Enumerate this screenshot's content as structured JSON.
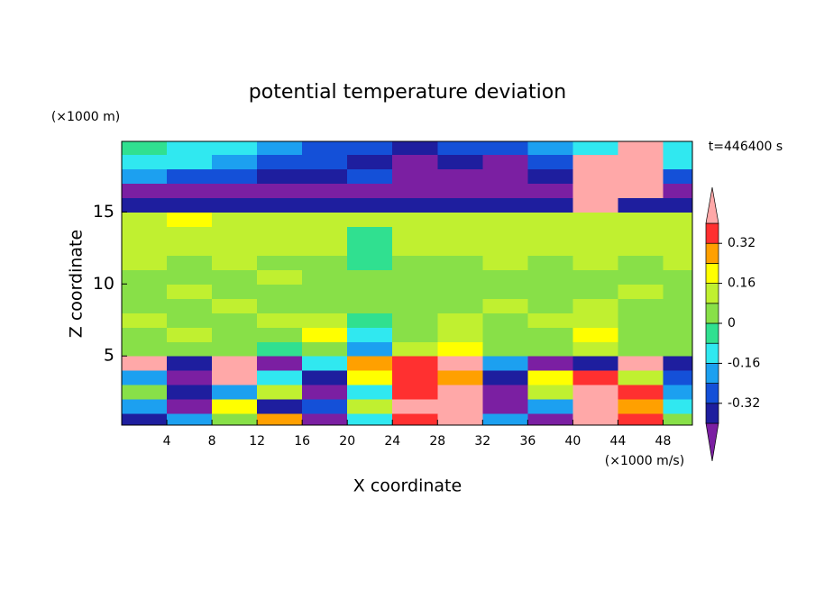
{
  "chart_data": {
    "type": "contour",
    "title": "potential temperature deviation",
    "x_label": "X coordinate",
    "y_label": "Z coordinate",
    "x_unit": "(×1000 m/s)",
    "y_unit": "(×1000 m)",
    "annotation": "t=446400 s",
    "xlim": [
      0,
      50.6
    ],
    "ylim": [
      0.2,
      19.9
    ],
    "xticks": [
      4,
      8,
      12,
      16,
      20,
      24,
      28,
      32,
      36,
      40,
      44,
      48
    ],
    "yticks": [
      5,
      10,
      15
    ],
    "x": [
      2,
      6,
      10,
      14,
      18,
      22,
      26,
      30,
      34,
      38,
      42,
      46,
      50
    ],
    "y": [
      0.5,
      1.5,
      2.5,
      3.5,
      4.5,
      5.5,
      6.5,
      7.5,
      8.5,
      9.5,
      10.5,
      11.5,
      12.5,
      13.5,
      14.5,
      15.5,
      16.5,
      17.5,
      18.5,
      19.5
    ],
    "z": [
      [
        -0.36,
        -0.2,
        0.04,
        0.28,
        -0.44,
        -0.12,
        0.36,
        0.44,
        -0.2,
        -0.44,
        0.44,
        0.36,
        0.04
      ],
      [
        -0.2,
        -0.44,
        0.2,
        -0.36,
        -0.28,
        0.12,
        0.44,
        0.44,
        -0.44,
        -0.2,
        0.44,
        0.28,
        -0.12
      ],
      [
        0.04,
        -0.36,
        -0.2,
        0.12,
        -0.44,
        -0.12,
        0.36,
        0.44,
        -0.44,
        0.12,
        0.44,
        0.36,
        -0.2
      ],
      [
        -0.2,
        -0.44,
        0.44,
        -0.12,
        -0.36,
        0.2,
        0.36,
        0.28,
        -0.36,
        0.2,
        0.36,
        0.12,
        -0.28
      ],
      [
        0.44,
        -0.36,
        0.44,
        -0.44,
        -0.12,
        0.28,
        0.36,
        0.44,
        -0.2,
        -0.44,
        -0.36,
        0.44,
        -0.36
      ],
      [
        0.04,
        0.04,
        0.04,
        -0.04,
        0.04,
        -0.2,
        0.12,
        0.2,
        0.04,
        0.04,
        0.12,
        0.04,
        0.04
      ],
      [
        0.04,
        0.12,
        0.04,
        0.04,
        0.2,
        -0.12,
        0.04,
        0.12,
        0.04,
        0.04,
        0.2,
        0.04,
        0.04
      ],
      [
        0.12,
        0.04,
        0.04,
        0.12,
        0.12,
        -0.04,
        0.04,
        0.12,
        0.04,
        0.12,
        0.12,
        0.04,
        0.04
      ],
      [
        0.04,
        0.04,
        0.12,
        0.04,
        0.04,
        0.04,
        0.04,
        0.04,
        0.12,
        0.04,
        0.12,
        0.04,
        0.04
      ],
      [
        0.04,
        0.12,
        0.04,
        0.04,
        0.04,
        0.04,
        0.04,
        0.04,
        0.04,
        0.04,
        0.04,
        0.12,
        0.04
      ],
      [
        0.04,
        0.04,
        0.04,
        0.12,
        0.04,
        0.04,
        0.04,
        0.04,
        0.04,
        0.04,
        0.04,
        0.04,
        0.04
      ],
      [
        0.12,
        0.04,
        0.12,
        0.04,
        0.04,
        -0.04,
        0.04,
        0.04,
        0.12,
        0.04,
        0.12,
        0.04,
        0.12
      ],
      [
        0.12,
        0.12,
        0.12,
        0.12,
        0.12,
        -0.04,
        0.12,
        0.12,
        0.12,
        0.12,
        0.12,
        0.12,
        0.12
      ],
      [
        0.12,
        0.12,
        0.12,
        0.12,
        0.12,
        -0.04,
        0.12,
        0.12,
        0.12,
        0.12,
        0.12,
        0.12,
        0.12
      ],
      [
        0.12,
        0.2,
        0.12,
        0.12,
        0.12,
        0.12,
        0.12,
        0.12,
        0.12,
        0.12,
        0.12,
        0.12,
        0.12
      ],
      [
        -0.36,
        -0.36,
        -0.36,
        -0.36,
        -0.36,
        -0.36,
        -0.36,
        -0.36,
        -0.36,
        -0.36,
        0.44,
        -0.36,
        -0.36
      ],
      [
        -0.44,
        -0.44,
        -0.44,
        -0.44,
        -0.44,
        -0.44,
        -0.44,
        -0.44,
        -0.44,
        -0.44,
        0.44,
        0.44,
        -0.44
      ],
      [
        -0.2,
        -0.28,
        -0.28,
        -0.36,
        -0.36,
        -0.28,
        -0.44,
        -0.44,
        -0.44,
        -0.36,
        0.44,
        0.44,
        -0.28
      ],
      [
        -0.12,
        -0.12,
        -0.2,
        -0.28,
        -0.28,
        -0.36,
        -0.44,
        -0.36,
        -0.44,
        -0.28,
        0.44,
        0.44,
        -0.12
      ],
      [
        -0.04,
        -0.12,
        -0.12,
        -0.2,
        -0.28,
        -0.28,
        -0.36,
        -0.28,
        -0.28,
        -0.2,
        -0.12,
        0.44,
        -0.12
      ]
    ],
    "levels": [
      -0.4,
      -0.32,
      -0.24,
      -0.16,
      -0.08,
      0,
      0.08,
      0.16,
      0.24,
      0.32,
      0.4
    ],
    "colors": [
      "#7b1fa2",
      "#1e1e9e",
      "#1450d8",
      "#1ca0f0",
      "#30e8f0",
      "#30e090",
      "#88e048",
      "#c0f030",
      "#ffff00",
      "#ffa000",
      "#ff3030",
      "#ffa8a8"
    ],
    "colorbar_ticks": [
      0.32,
      0.16,
      0,
      -0.16,
      -0.32
    ]
  }
}
